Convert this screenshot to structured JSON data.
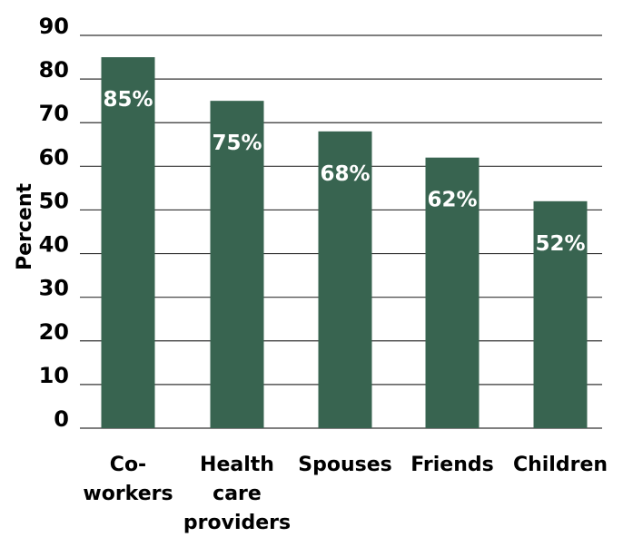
{
  "chart_data": {
    "type": "bar",
    "ylabel": "Percent",
    "xlabel": "",
    "ylim": [
      0,
      90
    ],
    "yticks": [
      0,
      10,
      20,
      30,
      40,
      50,
      60,
      70,
      80,
      90
    ],
    "grid": true,
    "categories": [
      [
        "Co-",
        "workers"
      ],
      [
        "Health",
        "care",
        "providers"
      ],
      [
        "Spouses"
      ],
      [
        "Friends"
      ],
      [
        "Children"
      ]
    ],
    "values": [
      85,
      75,
      68,
      62,
      52
    ],
    "data_labels": [
      "85%",
      "75%",
      "68%",
      "62%",
      "52%"
    ],
    "bar_color": "#386450"
  }
}
